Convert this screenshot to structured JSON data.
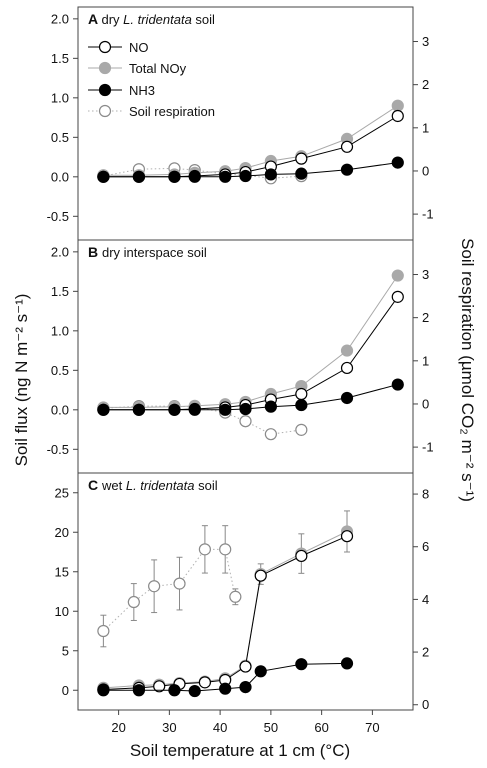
{
  "chart_data": {
    "type": "line",
    "xlabel": "Soil temperature at 1 cm (°C)",
    "ylabel_left": "Soil flux (ng N m⁻² s⁻¹)",
    "ylabel_right": "Soil respiration (µmol CO₂ m⁻² s⁻¹)",
    "xlim": [
      12,
      78
    ],
    "xticks": [
      20,
      30,
      40,
      50,
      60,
      70
    ],
    "legend": [
      {
        "key": "NO",
        "label": "NO",
        "marker": "open-circle",
        "color": "#000000"
      },
      {
        "key": "NOy",
        "label": "Total NOy",
        "marker": "filled-circle",
        "color": "#a9a9a9"
      },
      {
        "key": "NH3",
        "label": "NH3",
        "marker": "filled-circle",
        "color": "#000000"
      },
      {
        "key": "resp",
        "label": "Soil respiration",
        "marker": "open-circle",
        "color": "#9a9a9a"
      }
    ],
    "panels": [
      {
        "letter": "A",
        "title_prefix": "dry ",
        "title_italic": "L. tridentata",
        "title_suffix": " soil",
        "ylim": [
          -0.8,
          2.15
        ],
        "yticks": [
          -0.5,
          0.0,
          0.5,
          1.0,
          1.5,
          2.0
        ],
        "ylim_right": [
          -1.6,
          3.8
        ],
        "yticks_right": [
          -1,
          0,
          1,
          2,
          3
        ],
        "series": {
          "NO": {
            "x": [
              17,
              24,
              31,
              35,
              41,
              45,
              50,
              56,
              65,
              75
            ],
            "y": [
              0.0,
              0.0,
              0.0,
              0.01,
              0.03,
              0.06,
              0.13,
              0.23,
              0.38,
              0.77
            ]
          },
          "NOy": {
            "x": [
              17,
              24,
              31,
              35,
              41,
              45,
              50,
              56,
              65,
              75
            ],
            "y": [
              0.02,
              0.02,
              0.03,
              0.05,
              0.07,
              0.11,
              0.2,
              0.26,
              0.48,
              0.9
            ]
          },
          "NH3": {
            "x": [
              17,
              24,
              31,
              35,
              41,
              45,
              50,
              56,
              65,
              75
            ],
            "y": [
              0.0,
              0.0,
              0.0,
              0.0,
              0.0,
              0.01,
              0.03,
              0.04,
              0.09,
              0.18
            ]
          },
          "resp": {
            "x": [
              17,
              24,
              31,
              35,
              41,
              45,
              50,
              56
            ],
            "y": [
              -0.12,
              0.04,
              0.06,
              0.02,
              -0.07,
              -0.1,
              -0.17,
              -0.12
            ]
          }
        }
      },
      {
        "letter": "B",
        "title_prefix": "dry interspace soil",
        "title_italic": "",
        "title_suffix": "",
        "ylim": [
          -0.8,
          2.15
        ],
        "yticks": [
          -0.5,
          0.0,
          0.5,
          1.0,
          1.5,
          2.0
        ],
        "ylim_right": [
          -1.6,
          3.8
        ],
        "yticks_right": [
          -1,
          0,
          1,
          2,
          3
        ],
        "series": {
          "NO": {
            "x": [
              17,
              24,
              31,
              35,
              41,
              45,
              50,
              56,
              65,
              75
            ],
            "y": [
              0.0,
              0.0,
              0.0,
              0.01,
              0.03,
              0.06,
              0.13,
              0.2,
              0.53,
              1.43
            ]
          },
          "NOy": {
            "x": [
              17,
              24,
              31,
              35,
              41,
              45,
              50,
              56,
              65,
              75
            ],
            "y": [
              0.03,
              0.03,
              0.04,
              0.05,
              0.07,
              0.1,
              0.2,
              0.3,
              0.75,
              1.7
            ]
          },
          "NH3": {
            "x": [
              17,
              24,
              31,
              35,
              41,
              45,
              50,
              56,
              65,
              75
            ],
            "y": [
              0.0,
              0.0,
              0.0,
              0.0,
              0.0,
              0.01,
              0.04,
              0.06,
              0.15,
              0.32
            ]
          },
          "resp": {
            "x": [
              17,
              24,
              31,
              35,
              41,
              45,
              50,
              56
            ],
            "y": [
              -0.1,
              -0.05,
              -0.05,
              -0.07,
              -0.2,
              -0.4,
              -0.7,
              -0.6
            ]
          }
        }
      },
      {
        "letter": "C",
        "title_prefix": "wet ",
        "title_italic": "L. tridentata",
        "title_suffix": " soil",
        "ylim": [
          -2.5,
          27.5
        ],
        "yticks": [
          0,
          5,
          10,
          15,
          20,
          25
        ],
        "ylim_right": [
          -0.2,
          8.8
        ],
        "yticks_right": [
          0,
          2,
          4,
          6,
          8
        ],
        "series": {
          "NO": {
            "x": [
              17,
              24,
              28,
              32,
              37,
              41,
              45,
              48,
              56,
              65
            ],
            "y": [
              0.1,
              0.3,
              0.5,
              0.8,
              1.0,
              1.3,
              3.0,
              14.5,
              17.0,
              19.5
            ]
          },
          "NOy": {
            "x": [
              17,
              24,
              28,
              32,
              37,
              41,
              45,
              48,
              56,
              65
            ],
            "y": [
              0.3,
              0.6,
              0.7,
              0.9,
              1.1,
              1.5,
              3.1,
              14.7,
              17.3,
              20.1
            ],
            "err": [
              0.2,
              0.2,
              0.2,
              0.2,
              0.3,
              0.3,
              0.5,
              1.3,
              2.5,
              2.6
            ]
          },
          "NH3": {
            "x": [
              17,
              24,
              31,
              35,
              41,
              45,
              48,
              56,
              65
            ],
            "y": [
              0.0,
              0.0,
              0.0,
              -0.1,
              0.2,
              0.4,
              2.4,
              3.3,
              3.4
            ]
          },
          "resp": {
            "x": [
              17,
              23,
              27,
              32,
              37,
              41,
              43
            ],
            "y": [
              2.8,
              3.9,
              4.5,
              4.6,
              5.9,
              5.9,
              4.1
            ],
            "err": [
              0.6,
              0.7,
              1.0,
              1.0,
              0.9,
              0.9,
              0.3
            ]
          }
        }
      }
    ]
  }
}
